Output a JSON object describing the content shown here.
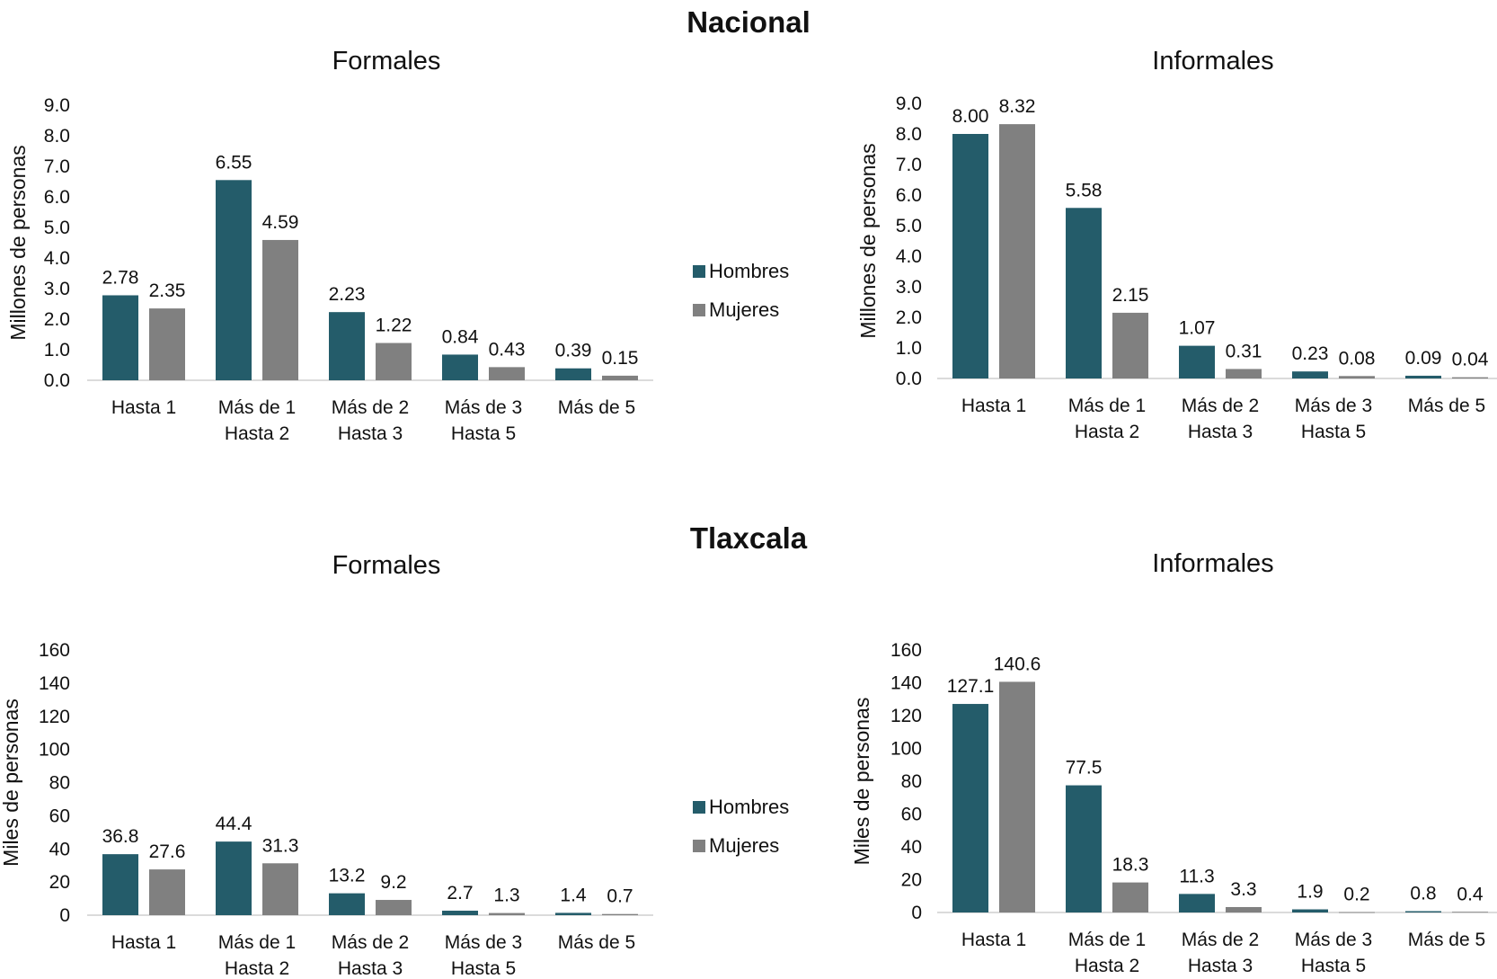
{
  "sections": [
    {
      "title": "Nacional"
    },
    {
      "title": "Tlaxcala"
    }
  ],
  "legend": {
    "hombres_label": "Hombres",
    "mujeres_label": "Mujeres",
    "hombres_color": "#245c6a",
    "mujeres_color": "#808080"
  },
  "chart_data": [
    {
      "type": "bar",
      "section": "Nacional",
      "title": "Formales",
      "ylabel": "Millones de personas",
      "ylim": [
        0,
        9
      ],
      "yticks": [
        "0.0",
        "1.0",
        "2.0",
        "3.0",
        "4.0",
        "5.0",
        "6.0",
        "7.0",
        "8.0",
        "9.0"
      ],
      "categories": [
        [
          "Hasta 1"
        ],
        [
          "Más de 1",
          "Hasta 2"
        ],
        [
          "Más de 2",
          "Hasta 3"
        ],
        [
          "Más de 3",
          "Hasta 5"
        ],
        [
          "Más de 5"
        ]
      ],
      "series": [
        {
          "name": "Hombres",
          "values": [
            2.78,
            6.55,
            2.23,
            0.84,
            0.39
          ],
          "labels": [
            "2.78",
            "6.55",
            "2.23",
            "0.84",
            "0.39"
          ]
        },
        {
          "name": "Mujeres",
          "values": [
            2.35,
            4.59,
            1.22,
            0.43,
            0.15
          ],
          "labels": [
            "2.35",
            "4.59",
            "1.22",
            "0.43",
            "0.15"
          ]
        }
      ],
      "legend": "right"
    },
    {
      "type": "bar",
      "section": "Nacional",
      "title": "Informales",
      "ylabel": "Millones de personas",
      "ylim": [
        0,
        9
      ],
      "yticks": [
        "0.0",
        "1.0",
        "2.0",
        "3.0",
        "4.0",
        "5.0",
        "6.0",
        "7.0",
        "8.0",
        "9.0"
      ],
      "categories": [
        [
          "Hasta 1"
        ],
        [
          "Más de 1",
          "Hasta 2"
        ],
        [
          "Más de 2",
          "Hasta 3"
        ],
        [
          "Más de 3",
          "Hasta 5"
        ],
        [
          "Más de 5"
        ]
      ],
      "series": [
        {
          "name": "Hombres",
          "values": [
            8.0,
            5.58,
            1.07,
            0.23,
            0.09
          ],
          "labels": [
            "8.00",
            "5.58",
            "1.07",
            "0.23",
            "0.09"
          ]
        },
        {
          "name": "Mujeres",
          "values": [
            8.32,
            2.15,
            0.31,
            0.08,
            0.04
          ],
          "labels": [
            "8.32",
            "2.15",
            "0.31",
            "0.08",
            "0.04"
          ]
        }
      ]
    },
    {
      "type": "bar",
      "section": "Tlaxcala",
      "title": "Formales",
      "ylabel": "Miles de personas",
      "ylim": [
        0,
        160
      ],
      "yticks": [
        "0",
        "20",
        "40",
        "60",
        "80",
        "100",
        "120",
        "140",
        "160"
      ],
      "categories": [
        [
          "Hasta 1"
        ],
        [
          "Más de 1",
          "Hasta 2"
        ],
        [
          "Más de 2",
          "Hasta 3"
        ],
        [
          "Más de 3",
          "Hasta 5"
        ],
        [
          "Más de 5"
        ]
      ],
      "series": [
        {
          "name": "Hombres",
          "values": [
            36.8,
            44.4,
            13.2,
            2.7,
            1.4
          ],
          "labels": [
            "36.8",
            "44.4",
            "13.2",
            "2.7",
            "1.4"
          ]
        },
        {
          "name": "Mujeres",
          "values": [
            27.6,
            31.3,
            9.2,
            1.3,
            0.7
          ],
          "labels": [
            "27.6",
            "31.3",
            "9.2",
            "1.3",
            "0.7"
          ]
        }
      ],
      "legend": "right"
    },
    {
      "type": "bar",
      "section": "Tlaxcala",
      "title": "Informales",
      "ylabel": "Miles  de personas",
      "ylim": [
        0,
        160
      ],
      "yticks": [
        "0",
        "20",
        "40",
        "60",
        "80",
        "100",
        "120",
        "140",
        "160"
      ],
      "categories": [
        [
          "Hasta 1"
        ],
        [
          "Más de 1",
          "Hasta 2"
        ],
        [
          "Más de 2",
          "Hasta 3"
        ],
        [
          "Más de 3",
          "Hasta 5"
        ],
        [
          "Más de 5"
        ]
      ],
      "series": [
        {
          "name": "Hombres",
          "values": [
            127.1,
            77.5,
            11.3,
            1.9,
            0.8
          ],
          "labels": [
            "127.1",
            "77.5",
            "11.3",
            "1.9",
            "0.8"
          ]
        },
        {
          "name": "Mujeres",
          "values": [
            140.6,
            18.3,
            3.3,
            0.2,
            0.4
          ],
          "labels": [
            "140.6",
            "18.3",
            "3.3",
            "0.2",
            "0.4"
          ]
        }
      ]
    }
  ]
}
